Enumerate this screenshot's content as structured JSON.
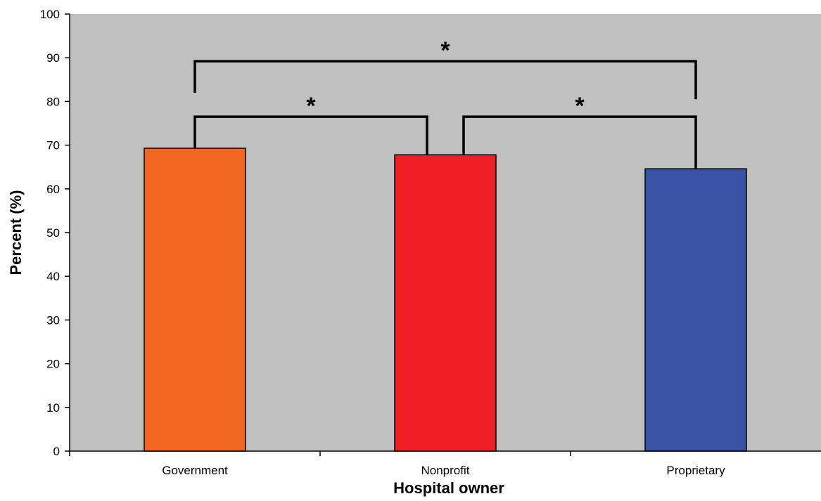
{
  "chart_data": {
    "type": "bar",
    "categories": [
      "Government",
      "Nonprofit",
      "Proprietary"
    ],
    "values": [
      69.3,
      67.8,
      64.6
    ],
    "colors": [
      "#F26822",
      "#ED1F24",
      "#3953A4"
    ],
    "plot_background": "#C0C0C0",
    "xlabel": "Hospital owner",
    "ylabel": "Percent (%)",
    "ylim": [
      0,
      100
    ],
    "yticks": [
      0,
      10,
      20,
      30,
      40,
      50,
      60,
      70,
      80,
      90,
      100
    ],
    "grid": false,
    "legend": "none",
    "annotations": [
      {
        "type": "significance-bracket",
        "from": "Government",
        "to": "Nonprofit",
        "label": "*"
      },
      {
        "type": "significance-bracket",
        "from": "Nonprofit",
        "to": "Proprietary",
        "label": "*"
      },
      {
        "type": "significance-bracket",
        "from": "Government",
        "to": "Proprietary",
        "label": "*"
      }
    ]
  }
}
